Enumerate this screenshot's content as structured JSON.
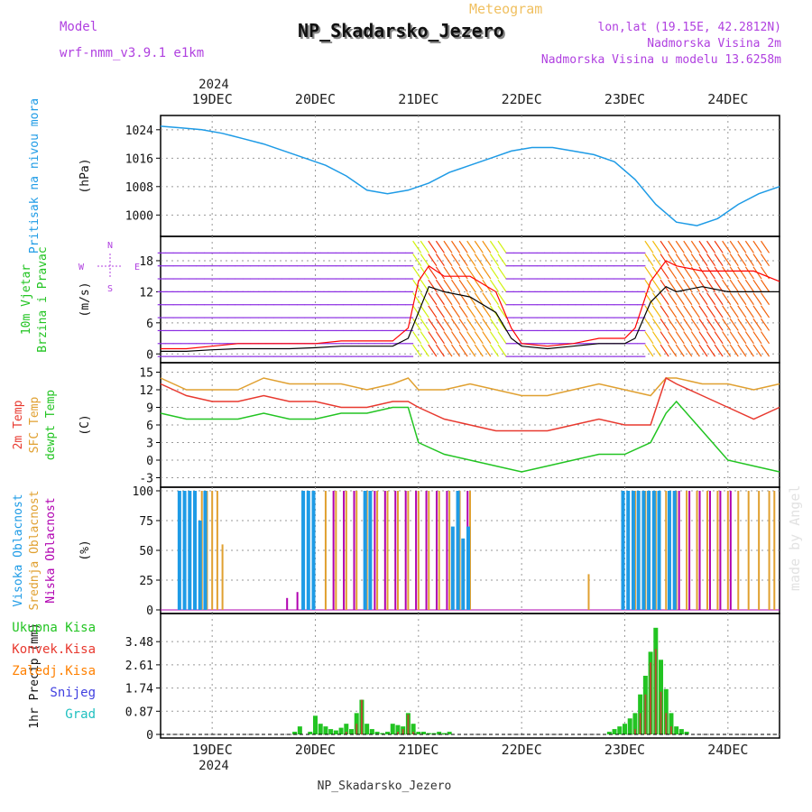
{
  "header": {
    "model_label": "Model",
    "model_name": "wrf-nmm_v3.9.1  e1km",
    "meteogram_label": "Meteogram",
    "station": "NP_Skadarsko_Jezero",
    "lonlat": "lon,lat (19.15E, 42.2812N)",
    "altitude": "Nadmorska Visina 2m",
    "model_altitude": "Nadmorska Visina u modelu 13.6258m"
  },
  "footer": {
    "station": "NP_Skadarsko_Jezero"
  },
  "watermark": "made by Angel",
  "time_axis": {
    "year": "2024",
    "day_labels": [
      "19DEC",
      "20DEC",
      "21DEC",
      "22DEC",
      "23DEC",
      "24DEC"
    ],
    "x_range_days": [
      -0.5,
      5.5
    ]
  },
  "colors": {
    "pressure": "#1e9be6",
    "wind_speed": "#000000",
    "wind_gust": "#ff0000",
    "temp_2m": "#e8392f",
    "temp_sfc": "#e0a030",
    "dewpoint": "#22c422",
    "cloud_high": "#1e9be6",
    "cloud_mid": "#e0a030",
    "cloud_low": "#b000b0",
    "precip_total": "#22c422",
    "precip_conv": "#e8392f",
    "precip_frz": "#ff8000",
    "precip_snow": "#4040e0",
    "precip_hail": "#20c0c0"
  },
  "chart_data": [
    {
      "type": "line",
      "name": "pressure",
      "ylabel_lines": [
        "Pritisak na nivou mora"
      ],
      "unit": "(hPa)",
      "yticks": [
        "1000",
        "1008",
        "1016",
        "1024"
      ],
      "ylim": [
        995,
        1027
      ],
      "x": [
        -0.5,
        -0.3,
        -0.1,
        0.1,
        0.3,
        0.5,
        0.7,
        0.9,
        1.1,
        1.3,
        1.5,
        1.7,
        1.9,
        2.1,
        2.3,
        2.5,
        2.7,
        2.9,
        3.1,
        3.3,
        3.5,
        3.7,
        3.9,
        4.1,
        4.3,
        4.5,
        4.7,
        4.9,
        5.1,
        5.3,
        5.5
      ],
      "y": [
        1025,
        1024.5,
        1024,
        1023,
        1021.5,
        1020,
        1018,
        1016,
        1014,
        1011,
        1007,
        1006,
        1007,
        1009,
        1012,
        1014,
        1016,
        1018,
        1019,
        1019,
        1018,
        1017,
        1015,
        1010,
        1003,
        998,
        997,
        999,
        1003,
        1006,
        1008
      ]
    },
    {
      "type": "line",
      "name": "wind",
      "ylabel_lines": [
        "10m Vjetar",
        "Brzina i Pravac"
      ],
      "unit": "(m/s)",
      "compass": {
        "n": "N",
        "s": "S",
        "e": "E",
        "w": "W"
      },
      "yticks": [
        "0",
        "6",
        "12",
        "18"
      ],
      "ylim": [
        -1,
        22
      ],
      "x": [
        -0.5,
        -0.25,
        0,
        0.25,
        0.5,
        0.75,
        1,
        1.25,
        1.5,
        1.75,
        1.9,
        2,
        2.1,
        2.25,
        2.5,
        2.75,
        2.9,
        3,
        3.25,
        3.5,
        3.75,
        4,
        4.1,
        4.25,
        4.4,
        4.5,
        4.75,
        5,
        5.25,
        5.5
      ],
      "speed": [
        0.5,
        0.5,
        0.8,
        1,
        1,
        1,
        1.2,
        1.5,
        1.5,
        1.5,
        3,
        8,
        13,
        12,
        11,
        8,
        3,
        1.5,
        1,
        1.5,
        2,
        2,
        3,
        10,
        13,
        12,
        13,
        12,
        12,
        12
      ],
      "gust": [
        1,
        1,
        1.5,
        2,
        2,
        2,
        2,
        2.5,
        2.5,
        2.5,
        5,
        14,
        17,
        15,
        15,
        12,
        5,
        2,
        1.5,
        2,
        3,
        3,
        5,
        14,
        18,
        17,
        16,
        16,
        16,
        14
      ]
    },
    {
      "type": "line",
      "name": "temperature",
      "ylabel_lines": [
        "2m Temp",
        "SFC Temp",
        "dewpt Temp"
      ],
      "unit": "(C)",
      "yticks": [
        "-3",
        "0",
        "3",
        "6",
        "9",
        "12",
        "15"
      ],
      "ylim": [
        -4,
        16
      ],
      "x": [
        -0.5,
        -0.25,
        0,
        0.25,
        0.5,
        0.75,
        1,
        1.25,
        1.5,
        1.75,
        1.9,
        2,
        2.25,
        2.5,
        2.75,
        3,
        3.25,
        3.5,
        3.75,
        4,
        4.25,
        4.4,
        4.5,
        4.75,
        5,
        5.25,
        5.5
      ],
      "series": [
        {
          "key": "sfc",
          "values": [
            14,
            12,
            12,
            12,
            14,
            13,
            13,
            13,
            12,
            13,
            14,
            12,
            12,
            13,
            12,
            11,
            11,
            12,
            13,
            12,
            11,
            14,
            14,
            13,
            13,
            12,
            13
          ]
        },
        {
          "key": "t2m",
          "values": [
            13,
            11,
            10,
            10,
            11,
            10,
            10,
            9,
            9,
            10,
            10,
            9,
            7,
            6,
            5,
            5,
            5,
            6,
            7,
            6,
            6,
            14,
            13,
            11,
            9,
            7,
            9
          ]
        },
        {
          "key": "dew",
          "values": [
            8,
            7,
            7,
            7,
            8,
            7,
            7,
            8,
            8,
            9,
            9,
            3,
            1,
            0,
            -1,
            -2,
            -1,
            0,
            1,
            1,
            3,
            8,
            10,
            5,
            0,
            -1,
            -2
          ]
        }
      ]
    },
    {
      "type": "bar",
      "name": "cloud_cover",
      "ylabel_lines": [
        "Visoka Oblacnost",
        "Srednja Oblacnost",
        "Niska Oblacnost"
      ],
      "unit": "(%)",
      "yticks": [
        "0",
        "25",
        "50",
        "75",
        "100"
      ],
      "ylim": [
        0,
        100
      ],
      "high": [
        [
          -0.3,
          100
        ],
        [
          -0.25,
          100
        ],
        [
          -0.2,
          100
        ],
        [
          -0.15,
          100
        ],
        [
          -0.1,
          75
        ],
        [
          -0.05,
          100
        ],
        [
          0.9,
          100
        ],
        [
          0.95,
          100
        ],
        [
          1.0,
          100
        ],
        [
          1.5,
          100
        ],
        [
          1.55,
          100
        ],
        [
          2.35,
          70
        ],
        [
          2.4,
          100
        ],
        [
          2.45,
          60
        ],
        [
          2.5,
          70
        ],
        [
          4.0,
          100
        ],
        [
          4.05,
          100
        ],
        [
          4.1,
          100
        ],
        [
          4.15,
          100
        ],
        [
          4.2,
          100
        ],
        [
          4.25,
          100
        ],
        [
          4.3,
          100
        ],
        [
          4.35,
          100
        ],
        [
          4.45,
          100
        ],
        [
          4.5,
          100
        ]
      ],
      "mid": [
        [
          -0.1,
          100
        ],
        [
          -0.05,
          100
        ],
        [
          0,
          100
        ],
        [
          0.05,
          100
        ],
        [
          0.1,
          55
        ],
        [
          1.1,
          100
        ],
        [
          1.2,
          100
        ],
        [
          1.3,
          100
        ],
        [
          1.4,
          100
        ],
        [
          1.5,
          100
        ],
        [
          1.6,
          100
        ],
        [
          1.7,
          100
        ],
        [
          1.8,
          100
        ],
        [
          1.9,
          100
        ],
        [
          2.0,
          100
        ],
        [
          2.1,
          100
        ],
        [
          2.2,
          100
        ],
        [
          2.3,
          100
        ],
        [
          2.4,
          100
        ],
        [
          2.5,
          100
        ],
        [
          3.65,
          30
        ],
        [
          4.1,
          100
        ],
        [
          4.2,
          100
        ],
        [
          4.3,
          100
        ],
        [
          4.4,
          100
        ],
        [
          4.5,
          100
        ],
        [
          4.6,
          100
        ],
        [
          4.7,
          100
        ],
        [
          4.8,
          100
        ],
        [
          4.9,
          100
        ],
        [
          5.0,
          100
        ],
        [
          5.1,
          100
        ],
        [
          5.2,
          100
        ],
        [
          5.3,
          100
        ],
        [
          5.4,
          100
        ],
        [
          5.45,
          100
        ]
      ],
      "low": [
        [
          0.7,
          10
        ],
        [
          0.8,
          15
        ],
        [
          0.9,
          100
        ],
        [
          1.15,
          100
        ],
        [
          1.25,
          100
        ],
        [
          1.35,
          100
        ],
        [
          1.45,
          90
        ],
        [
          1.55,
          100
        ],
        [
          1.65,
          100
        ],
        [
          1.75,
          100
        ],
        [
          1.85,
          100
        ],
        [
          1.95,
          100
        ],
        [
          2.05,
          100
        ],
        [
          2.15,
          100
        ],
        [
          2.25,
          100
        ],
        [
          2.35,
          100
        ],
        [
          2.45,
          100
        ],
        [
          4.0,
          100
        ],
        [
          4.1,
          100
        ],
        [
          4.2,
          100
        ],
        [
          4.3,
          100
        ],
        [
          4.4,
          100
        ],
        [
          4.5,
          100
        ],
        [
          4.6,
          100
        ],
        [
          4.7,
          100
        ],
        [
          4.8,
          100
        ],
        [
          4.9,
          100
        ],
        [
          5.0,
          100
        ]
      ]
    },
    {
      "type": "bar",
      "name": "precipitation",
      "ylabel_lines": [
        "1hr Precip (mm)"
      ],
      "legend": [
        "Ukupna Kisa",
        "Konvek.Kisa",
        "Zaledj.Kisa",
        "Snijeg",
        "Grad"
      ],
      "yticks": [
        "0",
        "0.87",
        "1.74",
        "2.61",
        "3.48"
      ],
      "ylim": [
        0,
        4.4
      ],
      "x": [
        0.8,
        0.85,
        0.95,
        1.0,
        1.05,
        1.1,
        1.15,
        1.2,
        1.25,
        1.3,
        1.35,
        1.4,
        1.45,
        1.5,
        1.55,
        1.6,
        1.65,
        1.7,
        1.75,
        1.8,
        1.85,
        1.9,
        1.95,
        2.0,
        2.05,
        2.1,
        2.15,
        2.2,
        2.25,
        2.3,
        3.85,
        3.9,
        3.95,
        4.0,
        4.05,
        4.1,
        4.15,
        4.2,
        4.25,
        4.3,
        4.35,
        4.4,
        4.45,
        4.5,
        4.55,
        4.6
      ],
      "total": [
        0.1,
        0.3,
        0.1,
        0.7,
        0.4,
        0.3,
        0.2,
        0.15,
        0.25,
        0.4,
        0.2,
        0.8,
        1.3,
        0.4,
        0.2,
        0.1,
        0.05,
        0.1,
        0.4,
        0.35,
        0.3,
        0.8,
        0.4,
        0.1,
        0.1,
        0.05,
        0.05,
        0.1,
        0.05,
        0.1,
        0.1,
        0.2,
        0.3,
        0.4,
        0.6,
        0.8,
        1.5,
        2.2,
        3.1,
        4.0,
        2.8,
        1.7,
        0.8,
        0.3,
        0.2,
        0.1
      ],
      "conv": [
        0,
        0,
        0,
        0,
        0,
        0,
        0,
        0,
        0,
        0.1,
        0,
        0.4,
        1.3,
        0,
        0,
        0,
        0,
        0,
        0,
        0.1,
        0.2,
        0.75,
        0.1,
        0,
        0,
        0,
        0,
        0,
        0,
        0,
        0,
        0,
        0,
        0,
        0,
        0.2,
        0.8,
        1.5,
        2.7,
        3.2,
        1.6,
        0.8,
        0.3,
        0,
        0,
        0
      ]
    }
  ]
}
